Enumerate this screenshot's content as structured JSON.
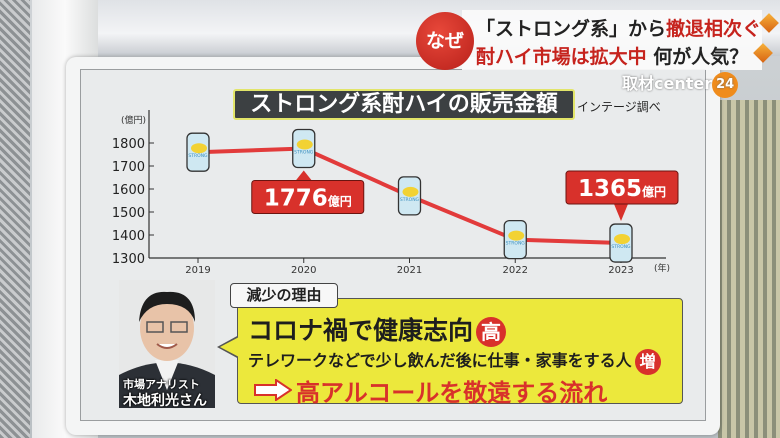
{
  "headline": {
    "badge": "なぜ",
    "line1_a": "「ストロング系」から",
    "line1_b": "撤退相次ぐ",
    "line2_a": "酎ハイ市場は拡大中",
    "line2_b": "何が人気？"
  },
  "logo": {
    "text": "取材center",
    "badge": "24"
  },
  "chart_data": {
    "type": "line",
    "title": "ストロング系酎ハイの販売金額",
    "source": "インテージ調べ",
    "ylabel": "(億円)",
    "xlabel": "(年)",
    "ylim": [
      1300,
      1800
    ],
    "yticks": [
      "1800",
      "1700",
      "1600",
      "1500",
      "1400",
      "1300"
    ],
    "categories": [
      "2019",
      "2020",
      "2021",
      "2022",
      "2023"
    ],
    "values": [
      1760,
      1776,
      1570,
      1380,
      1365
    ],
    "annotations": [
      {
        "x": "2020",
        "value": "1776",
        "unit": "億円"
      },
      {
        "x": "2023",
        "value": "1365",
        "unit": "億円"
      }
    ],
    "marker_label": "STRONG",
    "line_color": "#e23b3b",
    "grid": false
  },
  "reasons": {
    "tag": "減少の理由",
    "line1": "コロナ禍で健康志向",
    "line1_badge": "高",
    "line2": "テレワークなどで少し飲んだ後に仕事・家事をする人",
    "line2_badge": "増",
    "line3": "高アルコールを敬遠する流れ"
  },
  "analyst": {
    "role": "市場アナリスト",
    "name": "木地利光さん"
  }
}
